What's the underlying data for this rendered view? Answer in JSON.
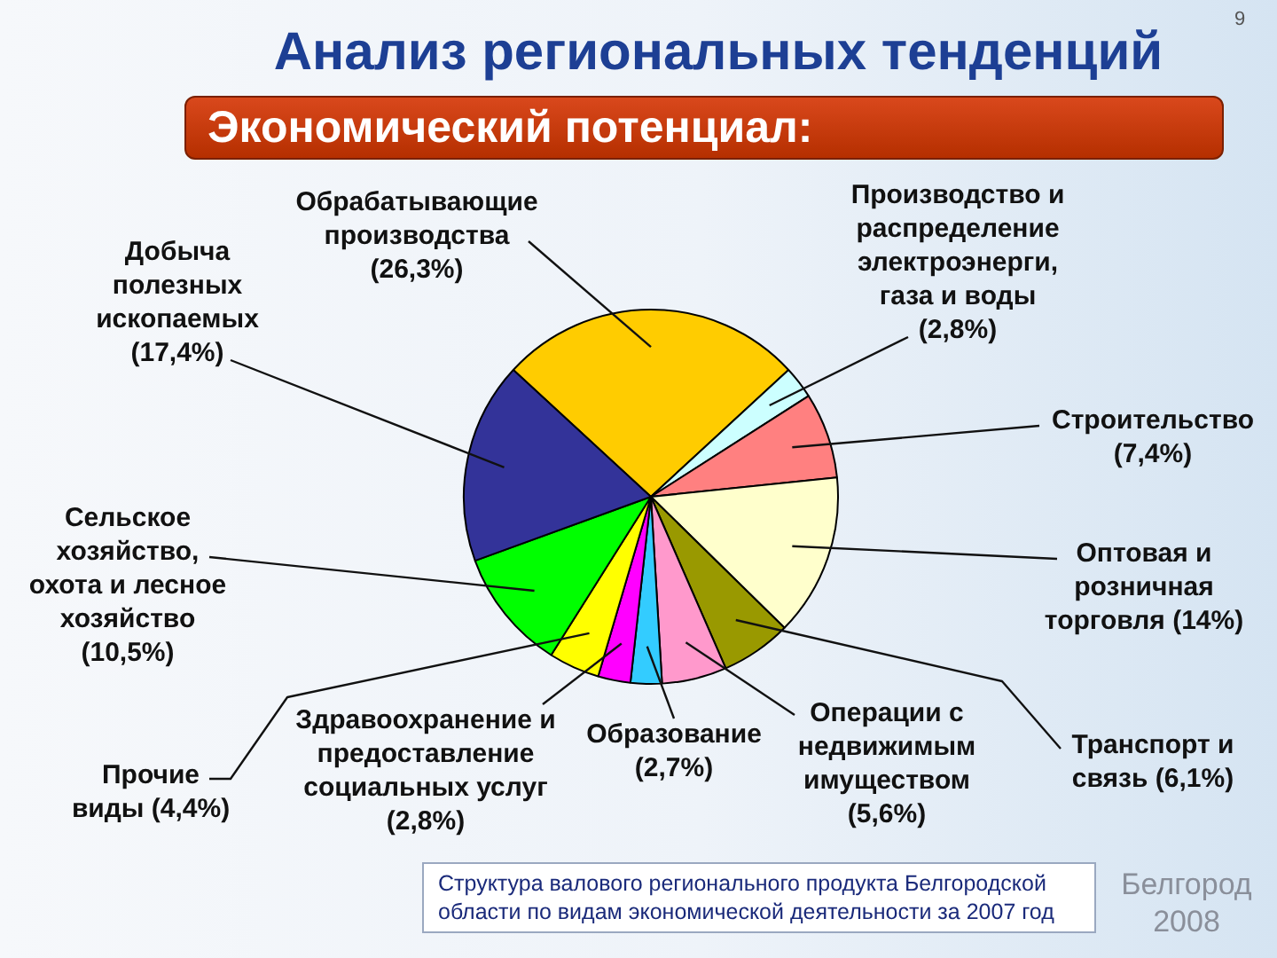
{
  "chart_data": {
    "type": "pie",
    "title": "Анализ региональных тенденций",
    "subtitle": "Экономический потенциал:",
    "categories": [
      "Обрабатывающие производства",
      "Производство и распределение электроэнерги, газа и воды",
      "Строительство",
      "Оптовая и розничная торговля",
      "Транспорт и связь",
      "Операции с недвижимым имуществом",
      "Образование",
      "Здравоохранение и предоставление социальных услуг",
      "Прочие виды",
      "Сельское хозяйство, охота и лесное хозяйство",
      "Добыча полезных ископаемых"
    ],
    "values": [
      26.3,
      2.8,
      7.4,
      14,
      6.1,
      5.6,
      2.7,
      2.8,
      4.4,
      10.5,
      17.4
    ],
    "colors": [
      "#ffcc00",
      "#ccffff",
      "#ff8080",
      "#ffffcc",
      "#999900",
      "#ff99cc",
      "#33ccff",
      "#ff00ff",
      "#ffff00",
      "#00ff00",
      "#333399"
    ],
    "value_labels": [
      "(26,3%)",
      "(2,8%)",
      "(7,4%)",
      "(14%)",
      "(6,1%)",
      "(5,6%)",
      "(2,7%)",
      "(2,8%)",
      "(4,4%)",
      "(10,5%)",
      "(17,4%)"
    ],
    "annotations": [
      "Структура валового регионального продукта Белгородской области по видам экономической деятельности за 2007 год",
      "Белгород 2008",
      "9"
    ]
  }
}
